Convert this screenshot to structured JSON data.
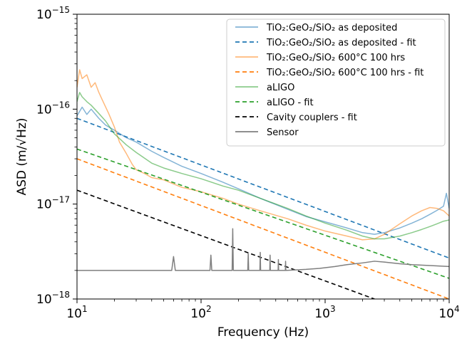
{
  "chart_data": {
    "type": "line",
    "title": "",
    "xlabel": "Frequency (Hz)",
    "ylabel": "ASD (m/√Hz)",
    "xscale": "log",
    "yscale": "log",
    "xlim": [
      10,
      10000
    ],
    "ylim": [
      1e-18,
      1e-15
    ],
    "grid": false,
    "legend_position": "top-right",
    "x_ticks": [
      {
        "value": 10,
        "base": "10",
        "exp": "1"
      },
      {
        "value": 100,
        "base": "10",
        "exp": "2"
      },
      {
        "value": 1000,
        "base": "10",
        "exp": "3"
      },
      {
        "value": 10000,
        "base": "10",
        "exp": "4"
      }
    ],
    "y_ticks": [
      {
        "value": 1e-18,
        "base": "10",
        "exp": "−18"
      },
      {
        "value": 1e-17,
        "base": "10",
        "exp": "−17"
      },
      {
        "value": 1e-16,
        "base": "10",
        "exp": "−16"
      },
      {
        "value": 1e-15,
        "base": "10",
        "exp": "−15"
      }
    ],
    "series": [
      {
        "name": "TiO₂:GeO₂/SiO₂ as deposited",
        "color": "#1f77b4",
        "style": "solid",
        "opacity": 0.55,
        "x": [
          10,
          11,
          12,
          13,
          15,
          17,
          20,
          25,
          30,
          40,
          50,
          70,
          100,
          150,
          200,
          300,
          500,
          700,
          1000,
          1500,
          2000,
          2500,
          3000,
          4000,
          5000,
          6000,
          7000,
          8000,
          9000,
          9500,
          10000
        ],
        "y": [
          8.5e-17,
          1.05e-16,
          8.8e-17,
          1e-16,
          8e-17,
          6.8e-17,
          6e-17,
          5e-17,
          4.5e-17,
          3.6e-17,
          3.1e-17,
          2.5e-17,
          2.1e-17,
          1.7e-17,
          1.45e-17,
          1.15e-17,
          8.8e-18,
          7.4e-18,
          6.5e-18,
          5.6e-18,
          5e-18,
          4.8e-18,
          5e-18,
          5.6e-18,
          6.3e-18,
          7e-18,
          7.8e-18,
          8.6e-18,
          9.5e-18,
          1.3e-17,
          9e-18
        ]
      },
      {
        "name": "TiO₂:GeO₂/SiO₂ as deposited - fit",
        "color": "#1f77b4",
        "style": "dashed",
        "opacity": 1,
        "x": [
          10,
          10000
        ],
        "y": [
          8e-17,
          2.7e-18
        ]
      },
      {
        "name": "TiO₂:GeO₂/SiO₂ 600°C 100 hrs",
        "color": "#ff7f0e",
        "style": "solid",
        "opacity": 0.55,
        "x": [
          10,
          10.5,
          11,
          12,
          13,
          14,
          15,
          16,
          18,
          20,
          22,
          25,
          28,
          30,
          35,
          40,
          50,
          70,
          100,
          150,
          200,
          300,
          500,
          700,
          1000,
          1500,
          2000,
          2500,
          3000,
          3500,
          4000,
          5000,
          6000,
          7000,
          8000,
          9000,
          10000
        ],
        "y": [
          1.7e-16,
          2.6e-16,
          2.1e-16,
          2.3e-16,
          1.7e-16,
          1.9e-16,
          1.5e-16,
          1.25e-16,
          9e-17,
          6.5e-17,
          4.5e-17,
          3.4e-17,
          2.6e-17,
          2.3e-17,
          2.1e-17,
          1.9e-17,
          1.8e-17,
          1.5e-17,
          1.35e-17,
          1.15e-17,
          1e-17,
          8.5e-18,
          7e-18,
          6e-18,
          5.2e-18,
          4.6e-18,
          4.2e-18,
          4.3e-18,
          4.8e-18,
          5.5e-18,
          6.2e-18,
          7.5e-18,
          8.5e-18,
          9.2e-18,
          9e-18,
          8.5e-18,
          7.5e-18
        ]
      },
      {
        "name": "TiO₂:GeO₂/SiO₂ 600°C 100 hrs - fit",
        "color": "#ff7f0e",
        "style": "dashed",
        "opacity": 1,
        "x": [
          10,
          10000
        ],
        "y": [
          3e-17,
          1e-18
        ]
      },
      {
        "name": "aLIGO",
        "color": "#2ca02c",
        "style": "solid",
        "opacity": 0.55,
        "x": [
          10,
          10.5,
          11,
          12,
          13,
          15,
          17,
          20,
          25,
          30,
          40,
          50,
          70,
          100,
          150,
          200,
          300,
          500,
          700,
          1000,
          1500,
          2000,
          2500,
          3000,
          4000,
          5000,
          6000,
          7000,
          8000,
          9000,
          10000
        ],
        "y": [
          1.2e-16,
          1.5e-16,
          1.35e-16,
          1.2e-16,
          1.1e-16,
          9e-17,
          7.5e-17,
          5.5e-17,
          4.2e-17,
          3.5e-17,
          2.7e-17,
          2.4e-17,
          2.1e-17,
          1.85e-17,
          1.55e-17,
          1.4e-17,
          1.15e-17,
          9e-18,
          7.5e-18,
          6.3e-18,
          5.3e-18,
          4.6e-18,
          4.3e-18,
          4.3e-18,
          4.6e-18,
          5e-18,
          5.4e-18,
          5.8e-18,
          6.2e-18,
          6.6e-18,
          6.8e-18
        ]
      },
      {
        "name": "aLIGO - fit",
        "color": "#2ca02c",
        "style": "dashed",
        "opacity": 1,
        "x": [
          10,
          10000
        ],
        "y": [
          3.8e-17,
          1.65e-18
        ]
      },
      {
        "name": "Cavity couplers - fit",
        "color": "#000000",
        "style": "dashed",
        "opacity": 1,
        "x": [
          10,
          2500
        ],
        "y": [
          1.4e-17,
          1e-18
        ]
      },
      {
        "name": "Sensor",
        "color": "#7f7f7f",
        "style": "solid",
        "opacity": 1,
        "x": [
          10,
          58,
          60,
          62,
          118,
          120,
          122,
          178,
          180,
          182,
          238,
          240,
          242,
          298,
          300,
          302,
          358,
          360,
          362,
          418,
          420,
          422,
          478,
          480,
          482,
          700,
          900,
          1200,
          1500,
          2000,
          2500,
          3000,
          4000,
          5000,
          7000,
          10000
        ],
        "y": [
          2e-18,
          2e-18,
          2.8e-18,
          2e-18,
          2e-18,
          2.9e-18,
          2e-18,
          2e-18,
          5.5e-18,
          2e-18,
          2e-18,
          3e-18,
          2e-18,
          2e-18,
          3.1e-18,
          2e-18,
          2e-18,
          2.9e-18,
          2e-18,
          2e-18,
          2.6e-18,
          2e-18,
          2e-18,
          2.5e-18,
          2e-18,
          2.05e-18,
          2.1e-18,
          2.2e-18,
          2.3e-18,
          2.4e-18,
          2.5e-18,
          2.45e-18,
          2.35e-18,
          2.3e-18,
          2.25e-18,
          2.2e-18
        ]
      }
    ]
  }
}
